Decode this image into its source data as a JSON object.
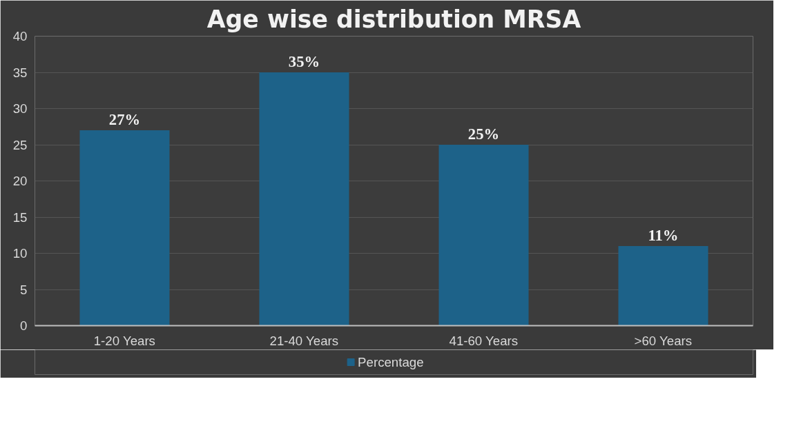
{
  "chart_data": {
    "type": "bar",
    "title": "Age wise distribution MRSA",
    "categories": [
      "1-20 Years",
      "21-40 Years",
      "41-60 Years",
      ">60 Years"
    ],
    "series": [
      {
        "name": "Percentage",
        "color": "#1d6289",
        "values": [
          27,
          35,
          25,
          11
        ]
      }
    ],
    "value_labels": [
      "27%",
      "35%",
      "25%",
      "11%"
    ],
    "ylim": [
      0,
      40
    ],
    "yticks": [
      0,
      5,
      10,
      15,
      20,
      25,
      30,
      35,
      40
    ],
    "grid": "y",
    "legend": "bottom"
  }
}
